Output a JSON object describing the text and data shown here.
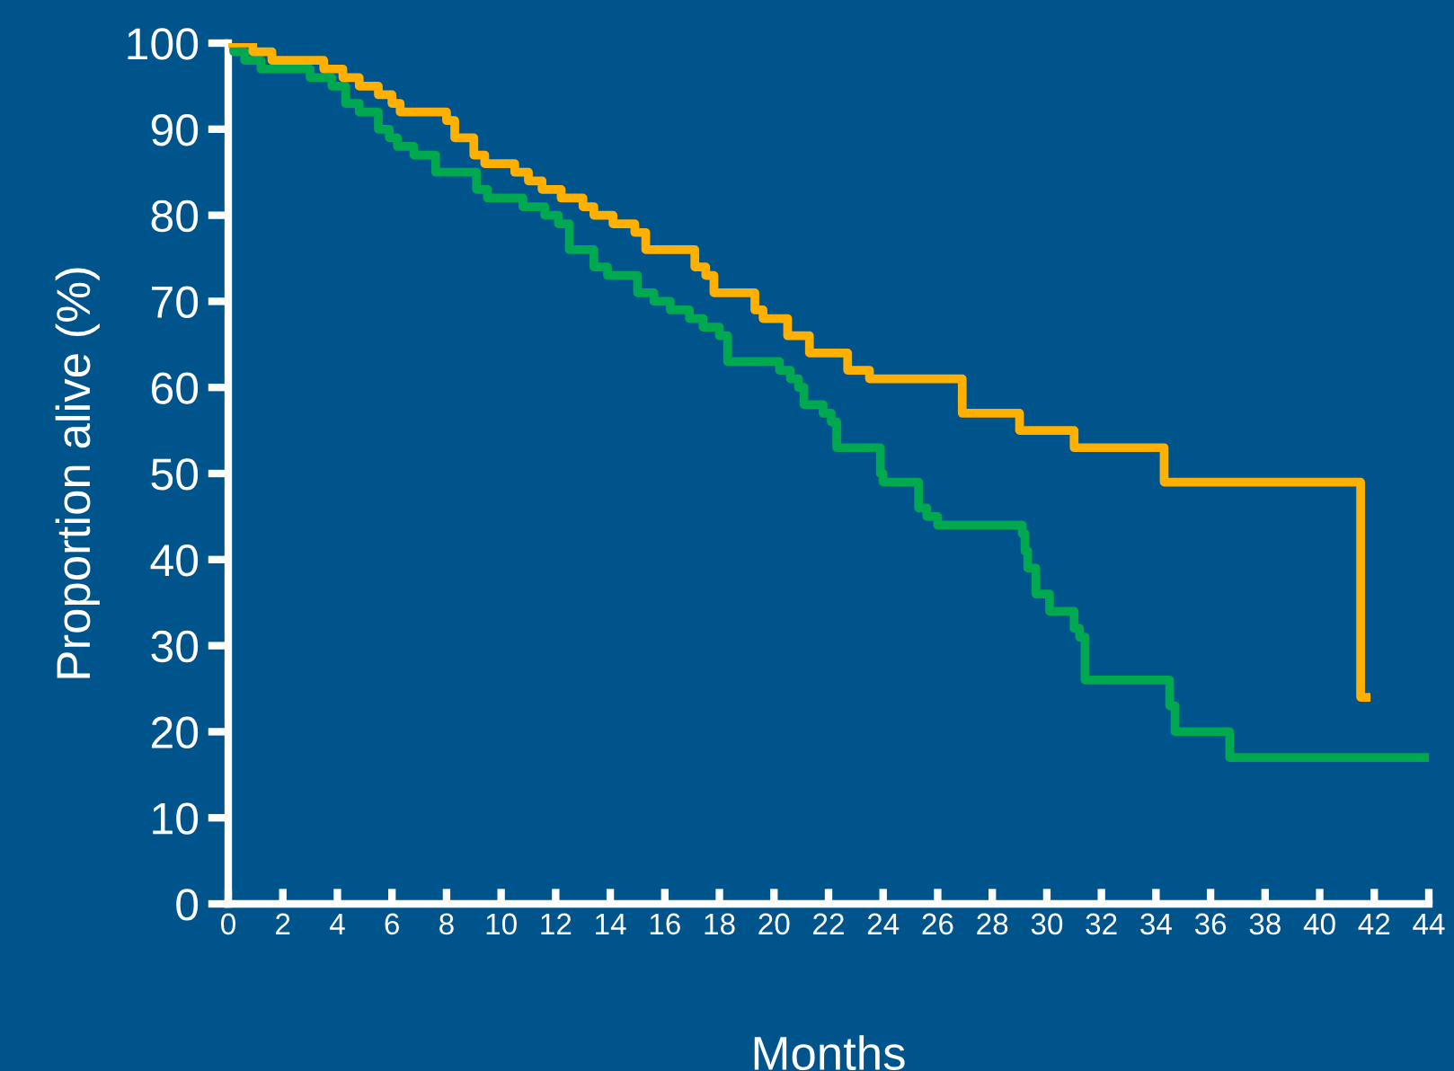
{
  "chart_data": {
    "type": "step",
    "xlabel": "Months",
    "ylabel": "Proportion alive (%)",
    "xlim": [
      0,
      44
    ],
    "ylim": [
      0,
      100
    ],
    "xticks": [
      0,
      2,
      4,
      6,
      8,
      10,
      12,
      14,
      16,
      18,
      20,
      22,
      24,
      26,
      28,
      30,
      32,
      34,
      36,
      38,
      40,
      42,
      44
    ],
    "yticks": [
      0,
      10,
      20,
      30,
      40,
      50,
      60,
      70,
      80,
      90,
      100
    ],
    "grid": false,
    "series": [
      {
        "color": "#ffb000",
        "x": [
          0,
          0.9,
          1.6,
          3.5,
          4.2,
          4.8,
          5.5,
          6.0,
          6.3,
          8.0,
          8.3,
          9.0,
          9.4,
          10.5,
          11.0,
          11.5,
          12.2,
          13.0,
          13.4,
          14.1,
          14.9,
          15.3,
          17.1,
          17.5,
          17.8,
          19.3,
          19.6,
          20.5,
          21.3,
          22.7,
          23.5,
          26.9,
          29.0,
          31.0,
          34.3,
          41.5,
          41.7
        ],
        "values": [
          100,
          99,
          98,
          97,
          96,
          95,
          94,
          93,
          92,
          91,
          89,
          87,
          86,
          85,
          84,
          83,
          82,
          81,
          80,
          79,
          78,
          76,
          74,
          73,
          71,
          69,
          68,
          66,
          64,
          62,
          61,
          57,
          55,
          53,
          49,
          24,
          24
        ]
      },
      {
        "color": "#00a850",
        "x": [
          0,
          0.2,
          0.6,
          1.2,
          3.0,
          3.8,
          4.3,
          4.8,
          5.5,
          5.9,
          6.2,
          6.8,
          7.6,
          9.1,
          9.5,
          10.8,
          11.6,
          12.1,
          12.5,
          13.4,
          13.9,
          15.0,
          15.6,
          16.2,
          16.9,
          17.4,
          18.0,
          18.3,
          20.2,
          20.6,
          20.9,
          21.1,
          21.8,
          22.1,
          22.3,
          23.9,
          24.0,
          25.3,
          25.6,
          26.0,
          29.1,
          29.2,
          29.3,
          29.6,
          30.1,
          31.0,
          31.2,
          31.4,
          34.5,
          34.7,
          36.7,
          44
        ],
        "values": [
          100,
          99,
          98,
          97,
          96,
          95,
          93,
          92,
          90,
          89,
          88,
          87,
          85,
          83,
          82,
          81,
          80,
          79,
          76,
          74,
          73,
          71,
          70,
          69,
          68,
          67,
          66,
          63,
          62,
          61,
          60,
          58,
          57,
          56,
          53,
          50,
          49,
          46,
          45,
          44,
          43,
          41,
          39,
          36,
          34,
          32,
          31,
          26,
          23,
          20,
          17,
          17
        ]
      }
    ]
  }
}
